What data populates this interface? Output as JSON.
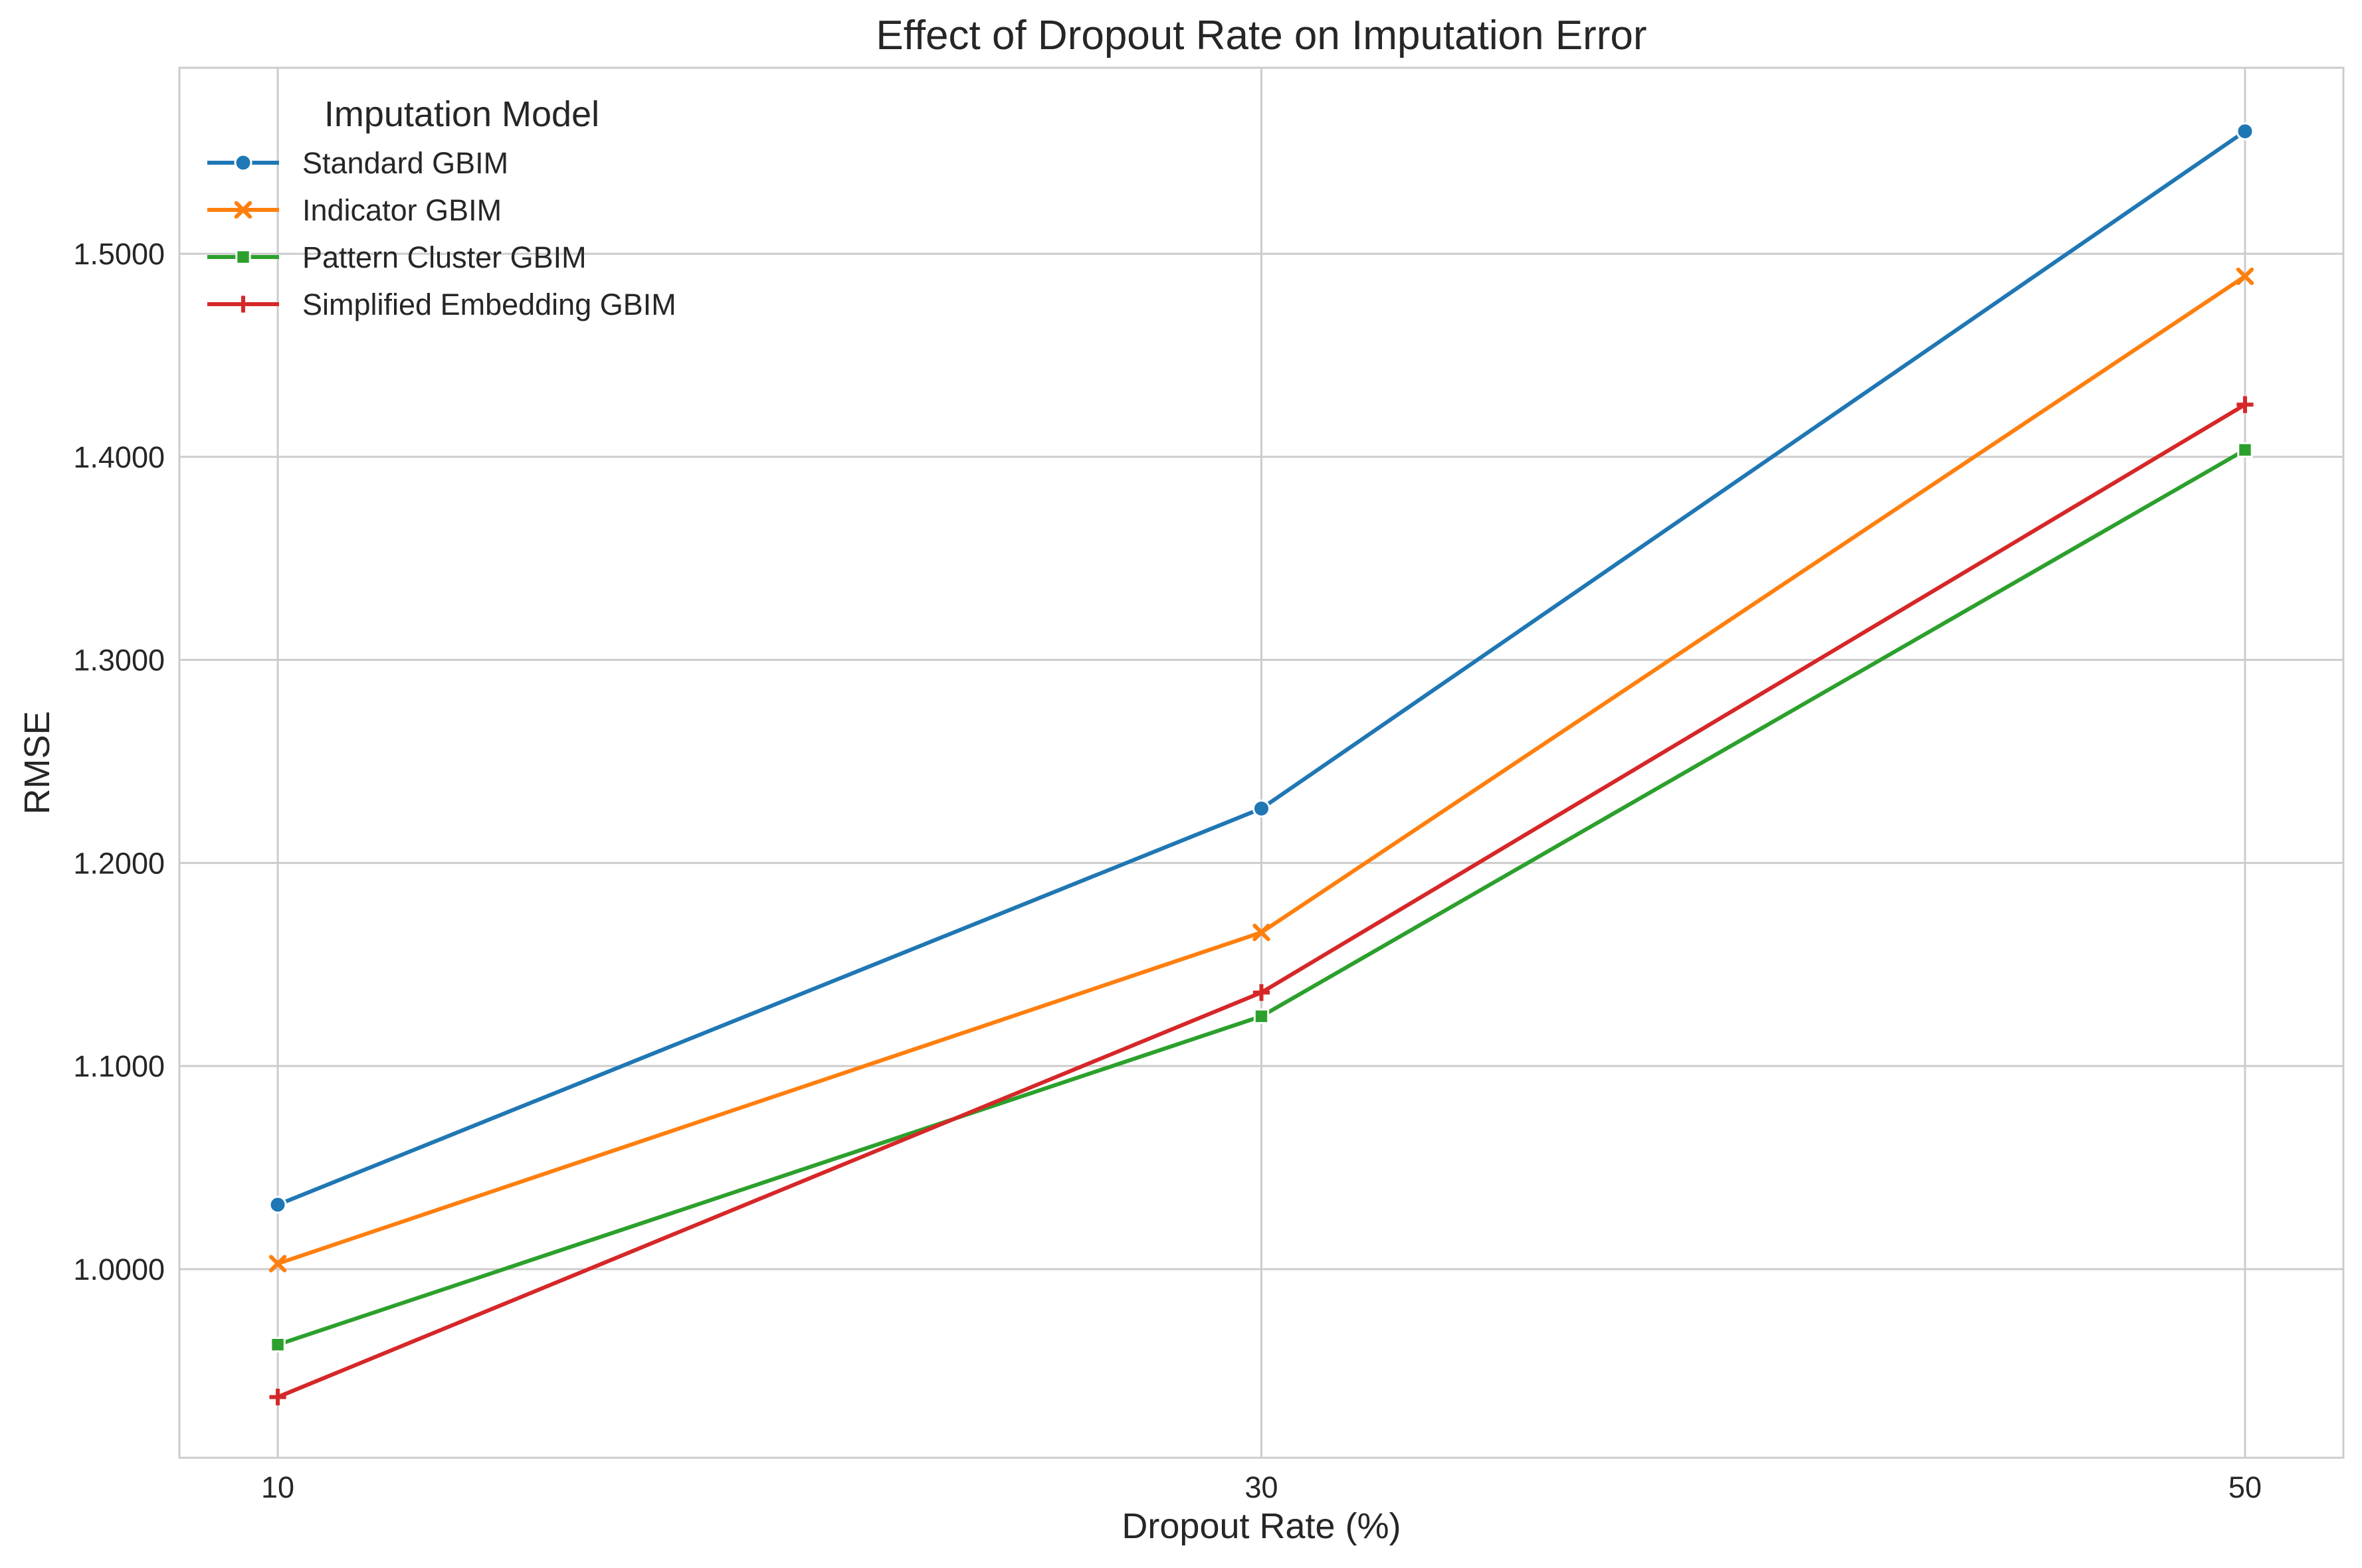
{
  "chart_data": {
    "type": "line",
    "title": "Effect of Dropout Rate on Imputation Error",
    "xlabel": "Dropout Rate (%)",
    "ylabel": "RMSE",
    "x": [
      10,
      30,
      50
    ],
    "x_tick_labels": [
      "10",
      "30",
      "50"
    ],
    "xlim": [
      8,
      52
    ],
    "ylim": [
      0.9071,
      1.5916
    ],
    "y_ticks": [
      1.0,
      1.1,
      1.2,
      1.3,
      1.4,
      1.5
    ],
    "y_tick_labels": [
      "1.0000",
      "1.1000",
      "1.2000",
      "1.3000",
      "1.4000",
      "1.5000"
    ],
    "grid": true,
    "legend": {
      "title": "Imputation Model",
      "placement": "top-left"
    },
    "series": [
      {
        "name": "Standard GBIM",
        "values": [
          1.0317,
          1.2268,
          1.5603
        ],
        "color": "#1f77b4",
        "marker": "circle"
      },
      {
        "name": "Indicator GBIM",
        "values": [
          1.0027,
          1.1658,
          1.4889
        ],
        "color": "#ff7f0e",
        "marker": "x"
      },
      {
        "name": "Pattern Cluster GBIM",
        "values": [
          0.9628,
          1.1245,
          1.4034
        ],
        "color": "#2ca02c",
        "marker": "square"
      },
      {
        "name": "Simplified Embedding GBIM",
        "values": [
          0.937,
          1.1362,
          1.4257
        ],
        "color": "#d62728",
        "marker": "plus"
      }
    ]
  }
}
